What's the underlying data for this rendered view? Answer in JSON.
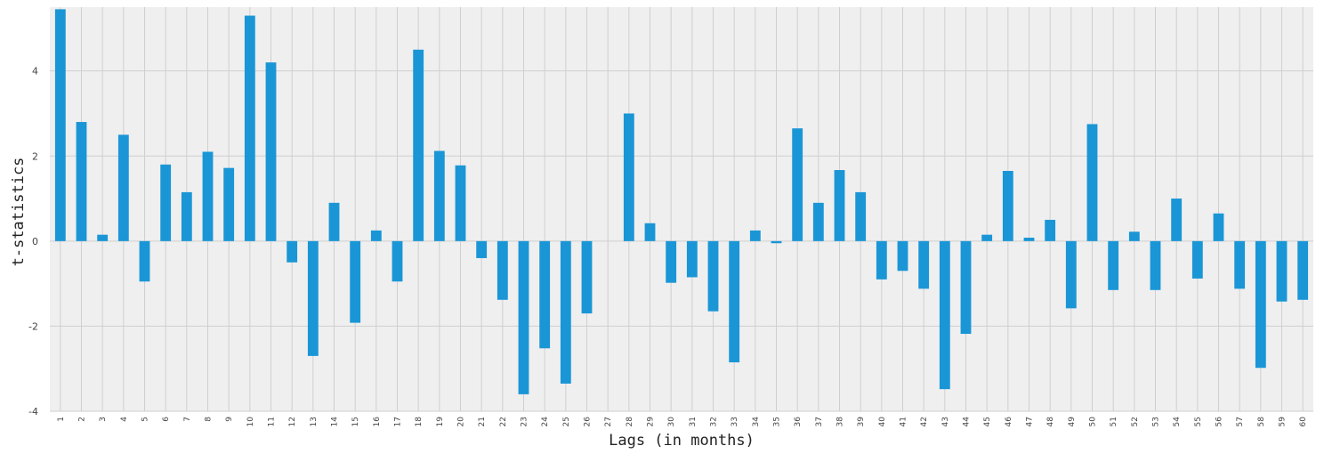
{
  "chart_data": {
    "type": "bar",
    "title": "",
    "xlabel": "Lags (in months)",
    "ylabel": "t-statistics",
    "ylim": [
      -4,
      5.5
    ],
    "yticks": [
      -4,
      -2,
      0,
      2,
      4
    ],
    "grid": true,
    "bar_color": "#1a96d6",
    "background_color": "#efefef",
    "grid_color": "#cfcfcf",
    "categories": [
      "1",
      "2",
      "3",
      "4",
      "5",
      "6",
      "7",
      "8",
      "9",
      "10",
      "11",
      "12",
      "13",
      "14",
      "15",
      "16",
      "17",
      "18",
      "19",
      "20",
      "21",
      "22",
      "23",
      "24",
      "25",
      "26",
      "27",
      "28",
      "29",
      "30",
      "31",
      "32",
      "33",
      "34",
      "35",
      "36",
      "37",
      "38",
      "39",
      "40",
      "41",
      "42",
      "43",
      "44",
      "45",
      "46",
      "47",
      "48",
      "49",
      "50",
      "51",
      "52",
      "53",
      "54",
      "55",
      "56",
      "57",
      "58",
      "59",
      "60"
    ],
    "series": [
      {
        "values": [
          5.45,
          2.8,
          0.15,
          2.5,
          -0.95,
          1.8,
          1.15,
          2.1,
          1.72,
          5.3,
          4.2,
          -0.5,
          -2.7,
          0.9,
          -1.92,
          0.25,
          -0.95,
          4.5,
          2.12,
          1.78,
          -0.4,
          -1.38,
          -3.6,
          -2.52,
          -3.35,
          -1.7,
          0.0,
          3.0,
          0.42,
          -0.98,
          -0.85,
          -1.65,
          -2.85,
          0.25,
          -0.05,
          2.65,
          0.9,
          1.67,
          1.15,
          -0.9,
          -0.7,
          -1.12,
          -3.48,
          -2.18,
          0.15,
          1.65,
          0.08,
          0.5,
          -1.58,
          2.75,
          -1.15,
          0.22,
          -1.15,
          1.0,
          -0.88,
          0.65,
          -1.12,
          -2.98,
          -1.42,
          -1.38
        ]
      }
    ]
  }
}
